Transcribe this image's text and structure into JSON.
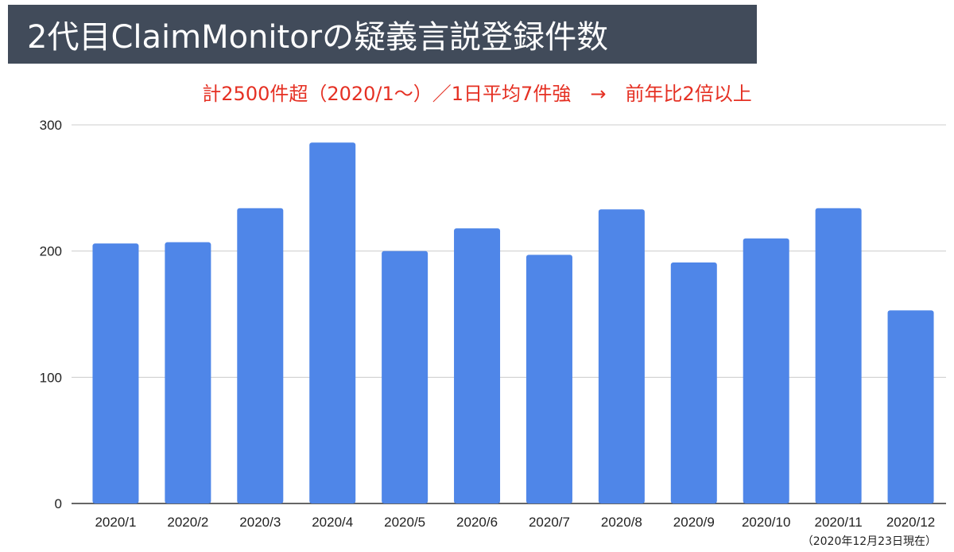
{
  "header": {
    "title": "2代目ClaimMonitorの疑義言説登録件数",
    "subtitle": "計2500件超（2020/1〜）／1日平均7件強　→　前年比2倍以上"
  },
  "footnote": "（2020年12月23日現在）",
  "colors": {
    "banner_bg": "#414b5a",
    "bar": "#4f86e8",
    "subtitle": "#e53023",
    "grid": "#cccccc"
  },
  "chart_data": {
    "type": "bar",
    "categories": [
      "2020/1",
      "2020/2",
      "2020/3",
      "2020/4",
      "2020/5",
      "2020/6",
      "2020/7",
      "2020/8",
      "2020/9",
      "2020/10",
      "2020/11",
      "2020/12"
    ],
    "values": [
      206,
      207,
      234,
      286,
      200,
      218,
      197,
      233,
      191,
      210,
      234,
      153
    ],
    "title": "",
    "xlabel": "",
    "ylabel": "",
    "ylim": [
      0,
      300
    ],
    "yticks": [
      "0",
      "100",
      "200",
      "300"
    ],
    "grid": true,
    "legend": "none"
  }
}
